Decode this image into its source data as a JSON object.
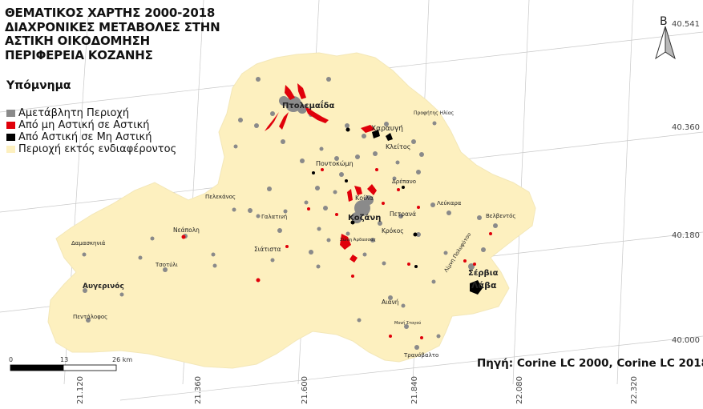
{
  "title_lines": [
    "ΘΕΜΑΤΙΚΟΣ ΧΑΡΤΗΣ 2000-2018",
    "ΔΙΑΧΡΟΝΙΚΕΣ ΜΕΤΑΒΟΛΕΣ ΣΤΗΝ",
    "ΑΣΤΙΚΗ ΟΙΚΟΔΟΜΗΣΗ",
    "ΠΕΡΙΦΕΡΕΙΑ ΚΟΖΑΝΗΣ"
  ],
  "legend": {
    "title": "Υπόμνημα",
    "items": [
      {
        "label": "Αμετάβλητη Περιοχή",
        "color": "#8a8a8a"
      },
      {
        "label": "Από μη Αστική σε Αστική",
        "color": "#e0000a"
      },
      {
        "label": "Από Αστική σε Μη Αστική",
        "color": "#000000"
      },
      {
        "label": "Περιοχή εκτός ενδιαφέροντος",
        "color": "#fdf0bf"
      }
    ]
  },
  "region_color": "#fdf0bf",
  "north_arrow_label": "Β",
  "scale_bar": {
    "labels": [
      "0",
      "13",
      "26 km"
    ]
  },
  "lat_labels": [
    "40.541",
    "40.360",
    "40.180",
    "40.000"
  ],
  "lon_labels": [
    "21.120",
    "21.360",
    "21.600",
    "21.840",
    "22.080",
    "22.320"
  ],
  "places": [
    {
      "name": "Πτολεμαΐδα",
      "big": true
    },
    {
      "name": "Προφήτης Ηλίας",
      "big": false
    },
    {
      "name": "Χαραυγή",
      "big": false
    },
    {
      "name": "Κλείτος",
      "big": false
    },
    {
      "name": "Ποντοκώμη",
      "big": false
    },
    {
      "name": "Δρέπανο",
      "big": false
    },
    {
      "name": "Κοίλα",
      "big": false
    },
    {
      "name": "Πελεκάνος",
      "big": false
    },
    {
      "name": "Γαλατινή",
      "big": false
    },
    {
      "name": "Κοζάνη",
      "big": true
    },
    {
      "name": "Πετρανά",
      "big": false
    },
    {
      "name": "Λεύκαρα",
      "big": false
    },
    {
      "name": "Βελβεντός",
      "big": false
    },
    {
      "name": "Νεάπολη",
      "big": false
    },
    {
      "name": "Δαμασκηνιά",
      "big": false
    },
    {
      "name": "Σιάτιστα",
      "big": false
    },
    {
      "name": "Ζώνη Άρδασσας",
      "big": false
    },
    {
      "name": "Κρόκος",
      "big": false
    },
    {
      "name": "Λίμνη Πολυφύτου",
      "big": false
    },
    {
      "name": "Τσοτύλι",
      "big": false
    },
    {
      "name": "Σέρβια",
      "big": true
    },
    {
      "name": "Λάβα",
      "big": true
    },
    {
      "name": "Αυγερινός",
      "big": true
    },
    {
      "name": "Αιανή",
      "big": false
    },
    {
      "name": "Πεντάλοφος",
      "big": false
    },
    {
      "name": "Μονή Σταγού",
      "big": false
    },
    {
      "name": "Τρανόβαλτο",
      "big": false
    }
  ],
  "source": "Πηγή: Corine LC 2000, Corine LC 2018"
}
